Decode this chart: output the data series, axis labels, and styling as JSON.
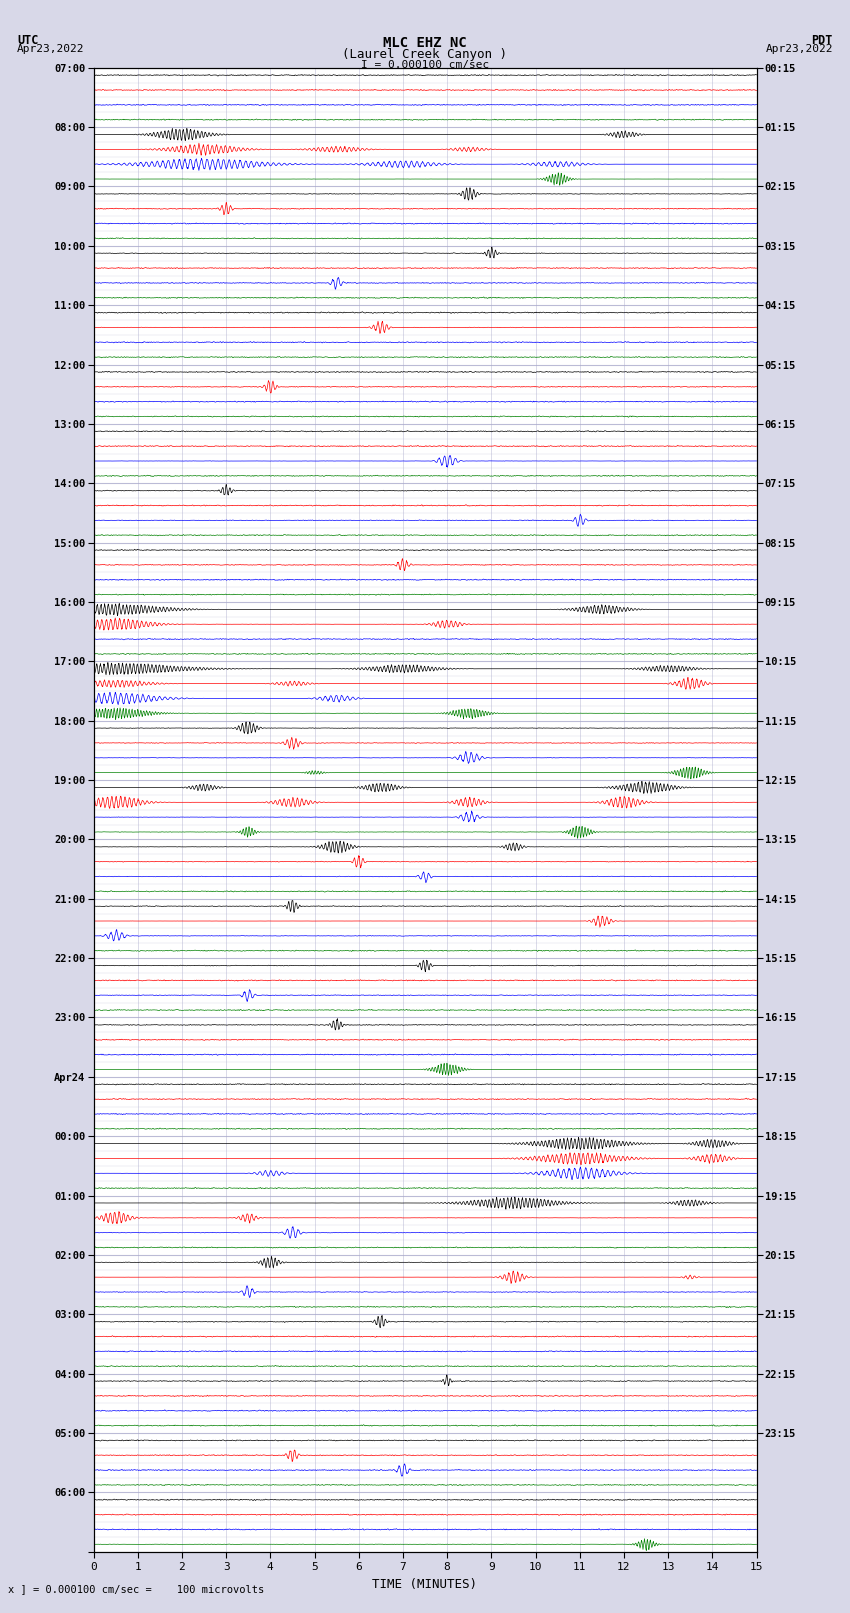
{
  "title_line1": "MLC EHZ NC",
  "title_line2": "(Laurel Creek Canyon )",
  "scale_label": "I = 0.000100 cm/sec",
  "utc_header": "UTC",
  "utc_date": "Apr23,2022",
  "pdt_header": "PDT",
  "pdt_date": "Apr23,2022",
  "bottom_label": "TIME (MINUTES)",
  "bottom_note": "x ] = 0.000100 cm/sec =    100 microvolts",
  "xlabel_ticks": [
    0,
    1,
    2,
    3,
    4,
    5,
    6,
    7,
    8,
    9,
    10,
    11,
    12,
    13,
    14,
    15
  ],
  "utc_times_hours": [
    "07:00",
    "08:00",
    "09:00",
    "10:00",
    "11:00",
    "12:00",
    "13:00",
    "14:00",
    "15:00",
    "16:00",
    "17:00",
    "18:00",
    "19:00",
    "20:00",
    "21:00",
    "22:00",
    "23:00",
    "Apr24",
    "00:00",
    "01:00",
    "02:00",
    "03:00",
    "04:00",
    "05:00",
    "06:00"
  ],
  "pdt_times_hours": [
    "00:15",
    "01:15",
    "02:15",
    "03:15",
    "04:15",
    "05:15",
    "06:15",
    "07:15",
    "08:15",
    "09:15",
    "10:15",
    "11:15",
    "12:15",
    "13:15",
    "14:15",
    "15:15",
    "16:15",
    "17:15",
    "18:15",
    "19:15",
    "20:15",
    "21:15",
    "22:15",
    "23:15"
  ],
  "num_hours": 25,
  "traces_per_hour": 4,
  "colors_cycle": [
    "black",
    "red",
    "blue",
    "green"
  ],
  "bg_color": "#d8d8e8",
  "plot_bg": "white",
  "grid_color": "#aaaacc",
  "seed": 12345
}
